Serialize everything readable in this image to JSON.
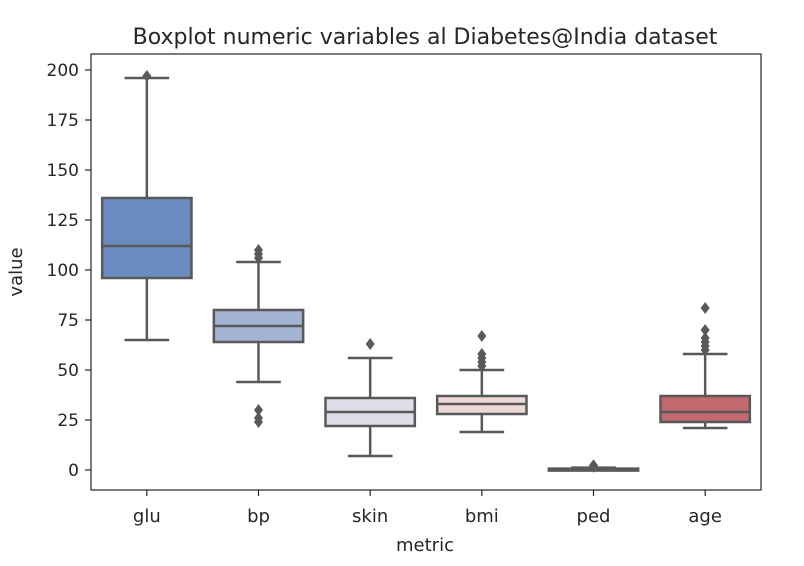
{
  "chart_data": {
    "type": "box",
    "title": "Boxplot numeric variables al Diabetes@India dataset",
    "xlabel": "metric",
    "ylabel": "value",
    "ylim": [
      -10,
      208
    ],
    "yticks": [
      0,
      25,
      50,
      75,
      100,
      125,
      150,
      175,
      200
    ],
    "grid": false,
    "categories": [
      "glu",
      "bp",
      "skin",
      "bmi",
      "ped",
      "age"
    ],
    "boxes": [
      {
        "category": "glu",
        "whisker_low": 65,
        "q1": 96,
        "median": 112,
        "q3": 136,
        "whisker_high": 196,
        "color": "#6b8cc0",
        "outliers": [
          197
        ]
      },
      {
        "category": "bp",
        "whisker_low": 44,
        "q1": 64,
        "median": 72,
        "q3": 80,
        "whisker_high": 104,
        "color": "#a3b4d2",
        "outliers": [
          24,
          26,
          30,
          106,
          108,
          110
        ]
      },
      {
        "category": "skin",
        "whisker_low": 7,
        "q1": 22,
        "median": 29,
        "q3": 36,
        "whisker_high": 56,
        "color": "#dcdde6",
        "outliers": [
          63
        ]
      },
      {
        "category": "bmi",
        "whisker_low": 19,
        "q1": 28,
        "median": 33,
        "q3": 37,
        "whisker_high": 50,
        "color": "#eed9d8",
        "outliers": [
          52,
          54,
          56,
          58,
          67
        ]
      },
      {
        "category": "ped",
        "whisker_low": 0.1,
        "q1": 0.25,
        "median": 0.4,
        "q3": 0.7,
        "whisker_high": 1.2,
        "color": "#dcaaa9",
        "outliers": [
          1.6,
          2.0,
          2.4
        ]
      },
      {
        "category": "age",
        "whisker_low": 21,
        "q1": 24,
        "median": 29,
        "q3": 37,
        "whisker_high": 58,
        "color": "#c46a6e",
        "outliers": [
          60,
          62,
          64,
          66,
          70,
          81
        ]
      }
    ]
  }
}
